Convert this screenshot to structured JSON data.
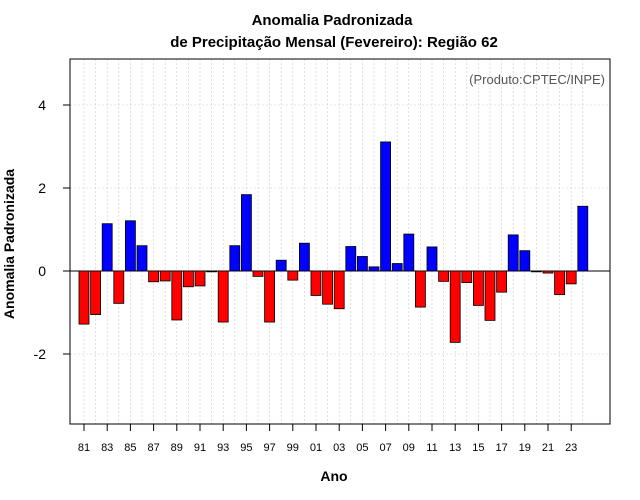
{
  "chart_data": {
    "type": "bar",
    "title": "Anomalia Padronizada",
    "subtitle": "de Precipitação Mensal (Fevereiro): Região 62",
    "xlabel": "Ano",
    "ylabel": "Anomalia Padronizada",
    "annotation": "(Produto:CPTEC/INPE)",
    "ylim": [
      -3.7,
      5.1
    ],
    "yticks": [
      -2,
      0,
      2,
      4
    ],
    "grid": true,
    "colors": {
      "positive": "#0000ff",
      "negative": "#ff0000"
    },
    "categories": [
      "1981",
      "1982",
      "1983",
      "1984",
      "1985",
      "1986",
      "1987",
      "1988",
      "1989",
      "1990",
      "1991",
      "1992",
      "1993",
      "1994",
      "1995",
      "1996",
      "1997",
      "1998",
      "1999",
      "2000",
      "2001",
      "2002",
      "2003",
      "2004",
      "2005",
      "2006",
      "2007",
      "2008",
      "2009",
      "2010",
      "2011",
      "2012",
      "2013",
      "2014",
      "2015",
      "2016",
      "2017",
      "2018",
      "2019",
      "2020",
      "2021",
      "2022",
      "2023",
      "2024"
    ],
    "tick_labels": [
      "81",
      "83",
      "85",
      "87",
      "89",
      "91",
      "93",
      "95",
      "97",
      "99",
      "01",
      "03",
      "05",
      "07",
      "09",
      "11",
      "13",
      "15",
      "17",
      "19",
      "21",
      "23"
    ],
    "values": [
      -1.28,
      -1.05,
      1.14,
      -0.78,
      1.21,
      0.61,
      -0.26,
      -0.24,
      -1.18,
      -0.38,
      -0.36,
      -0.02,
      -1.23,
      0.61,
      1.84,
      -0.13,
      -1.23,
      0.26,
      -0.22,
      0.67,
      -0.59,
      -0.8,
      -0.91,
      0.59,
      0.35,
      0.1,
      3.11,
      0.18,
      0.89,
      -0.87,
      0.58,
      -0.25,
      -1.72,
      -0.28,
      -0.83,
      -1.19,
      -0.51,
      0.87,
      0.49,
      -0.02,
      -0.05,
      -0.57,
      -0.31,
      1.56
    ]
  }
}
